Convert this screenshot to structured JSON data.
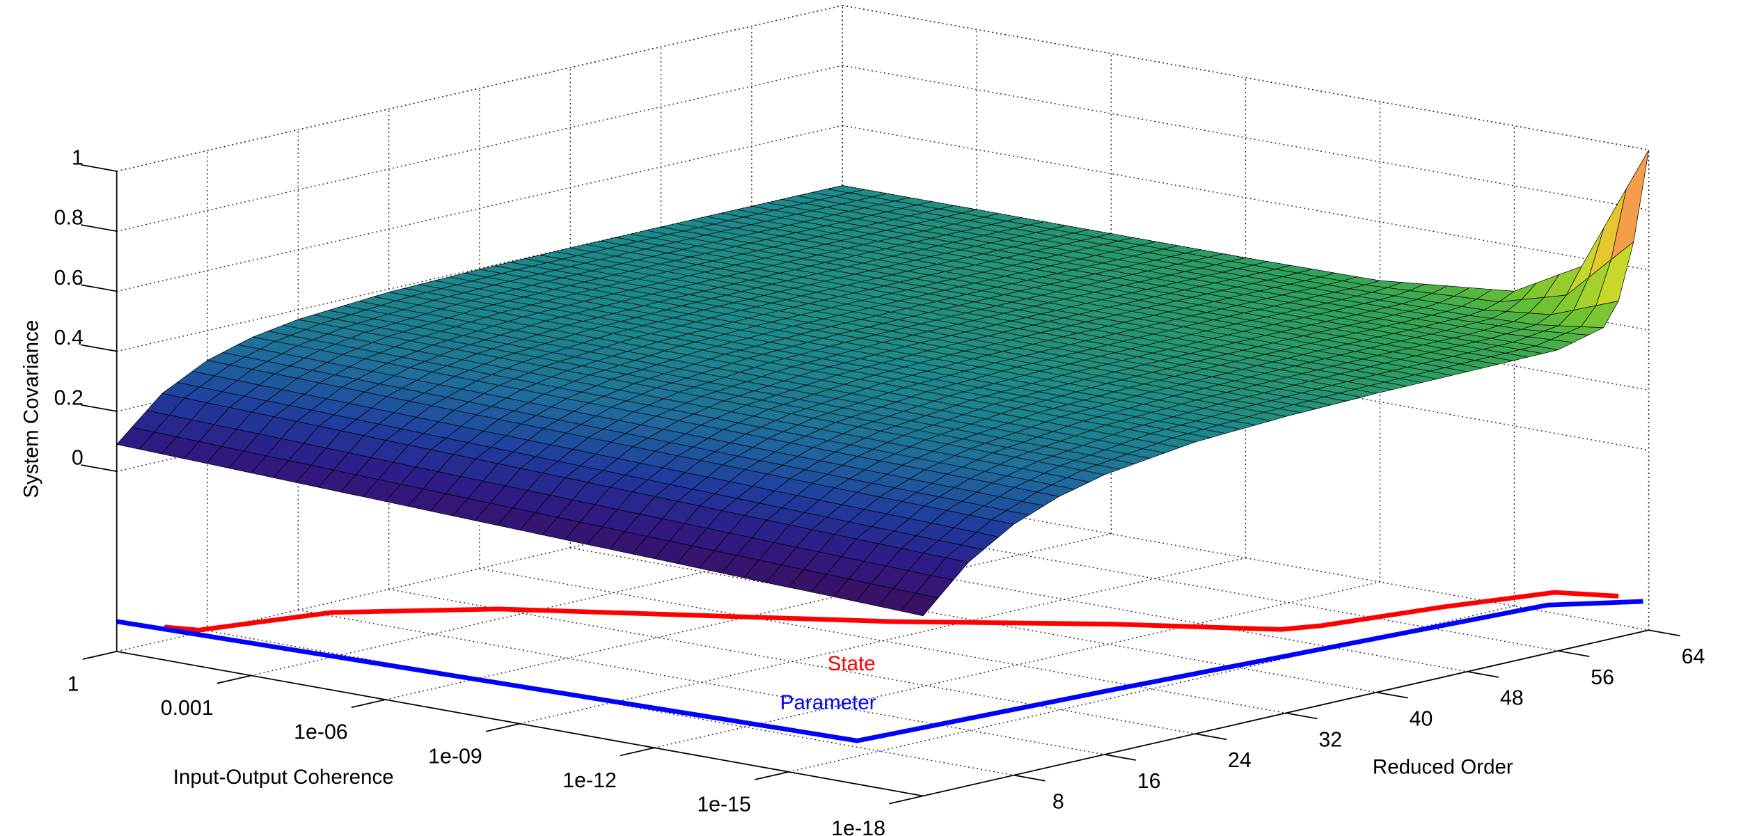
{
  "chart_data": {
    "type": "surface",
    "title": "",
    "xlabel": "Input-Output Coherence",
    "ylabel": "Reduced Order",
    "zlabel": "System Covariance",
    "x_scale": "log",
    "x_ticks": [
      {
        "neg_log10": 0,
        "label": "1"
      },
      {
        "neg_log10": 3,
        "label": "0.001"
      },
      {
        "neg_log10": 6,
        "label": "1e-06"
      },
      {
        "neg_log10": 9,
        "label": "1e-09"
      },
      {
        "neg_log10": 12,
        "label": "1e-12"
      },
      {
        "neg_log10": 15,
        "label": "1e-15"
      },
      {
        "neg_log10": 18,
        "label": "1e-18"
      }
    ],
    "y_ticks": [
      "8",
      "16",
      "24",
      "32",
      "40",
      "48",
      "56",
      "64"
    ],
    "y_tick_values": [
      8,
      16,
      24,
      32,
      40,
      48,
      56,
      64
    ],
    "z_ticks": [
      "0",
      "0.2",
      "0.4",
      "0.6",
      "0.8",
      "1"
    ],
    "z_tick_values": [
      0,
      0.2,
      0.4,
      0.6,
      0.8,
      1
    ],
    "xlim_neg_log10": [
      0,
      18
    ],
    "ylim": [
      0,
      64
    ],
    "zlim": [
      -0.6,
      1
    ],
    "grid": true,
    "surface": {
      "neg_log10_coherence": [
        0,
        3,
        6,
        9,
        12,
        15,
        16.5,
        18
      ],
      "order": [
        0,
        4,
        8,
        12,
        16,
        24,
        32,
        40,
        48,
        56,
        60,
        62,
        64
      ],
      "z": [
        [
          0.09,
          0.225,
          0.301,
          0.344,
          0.368,
          0.39,
          0.397,
          0.399,
          0.4,
          0.4,
          0.4,
          0.4,
          0.4
        ],
        [
          0.075,
          0.212,
          0.291,
          0.337,
          0.363,
          0.388,
          0.396,
          0.399,
          0.4,
          0.4,
          0.4,
          0.4,
          0.4
        ],
        [
          0.06,
          0.198,
          0.28,
          0.329,
          0.358,
          0.385,
          0.395,
          0.398,
          0.4,
          0.4,
          0.4,
          0.4,
          0.4
        ],
        [
          0.045,
          0.185,
          0.269,
          0.321,
          0.352,
          0.382,
          0.394,
          0.398,
          0.4,
          0.4,
          0.4,
          0.4,
          0.4
        ],
        [
          0.03,
          0.171,
          0.258,
          0.312,
          0.346,
          0.379,
          0.392,
          0.397,
          0.4,
          0.4,
          0.4,
          0.4,
          0.404
        ],
        [
          0.015,
          0.157,
          0.247,
          0.303,
          0.339,
          0.376,
          0.39,
          0.396,
          0.4,
          0.4,
          0.403,
          0.413,
          0.449
        ],
        [
          0.008,
          0.15,
          0.242,
          0.299,
          0.336,
          0.374,
          0.389,
          0.396,
          0.4,
          0.401,
          0.412,
          0.445,
          0.572
        ],
        [
          0.0,
          0.144,
          0.236,
          0.294,
          0.332,
          0.372,
          0.388,
          0.396,
          0.399,
          0.403,
          0.442,
          0.558,
          1.0
        ]
      ]
    },
    "series": [
      {
        "name": "State",
        "color": "#ff0000",
        "z": -0.5,
        "points": [
          [
            0.9,
            0.65
          ],
          [
            1.5,
            1.3
          ],
          [
            2.2,
            10.3
          ],
          [
            4.1,
            17.5
          ],
          [
            9.7,
            30
          ],
          [
            12.6,
            38
          ],
          [
            15,
            43.4
          ],
          [
            15.3,
            45.8
          ],
          [
            15.8,
            54.6
          ],
          [
            16.4,
            62
          ],
          [
            17.4,
            63.7
          ]
        ]
      },
      {
        "name": "Parameter",
        "color": "#0000ff",
        "z": -0.5,
        "points": [
          [
            0,
            0
          ],
          [
            15.8,
            2.9
          ],
          [
            16.2,
            23.7
          ],
          [
            17,
            59
          ],
          [
            18,
            63.5
          ]
        ]
      }
    ],
    "colormap": [
      "#3b0f5e",
      "#2e1a86",
      "#1f3c9e",
      "#1f6a9c",
      "#1c8a8c",
      "#2fa35a",
      "#6cc232",
      "#c8d82a",
      "#f0c030",
      "#ff6f6f"
    ]
  }
}
